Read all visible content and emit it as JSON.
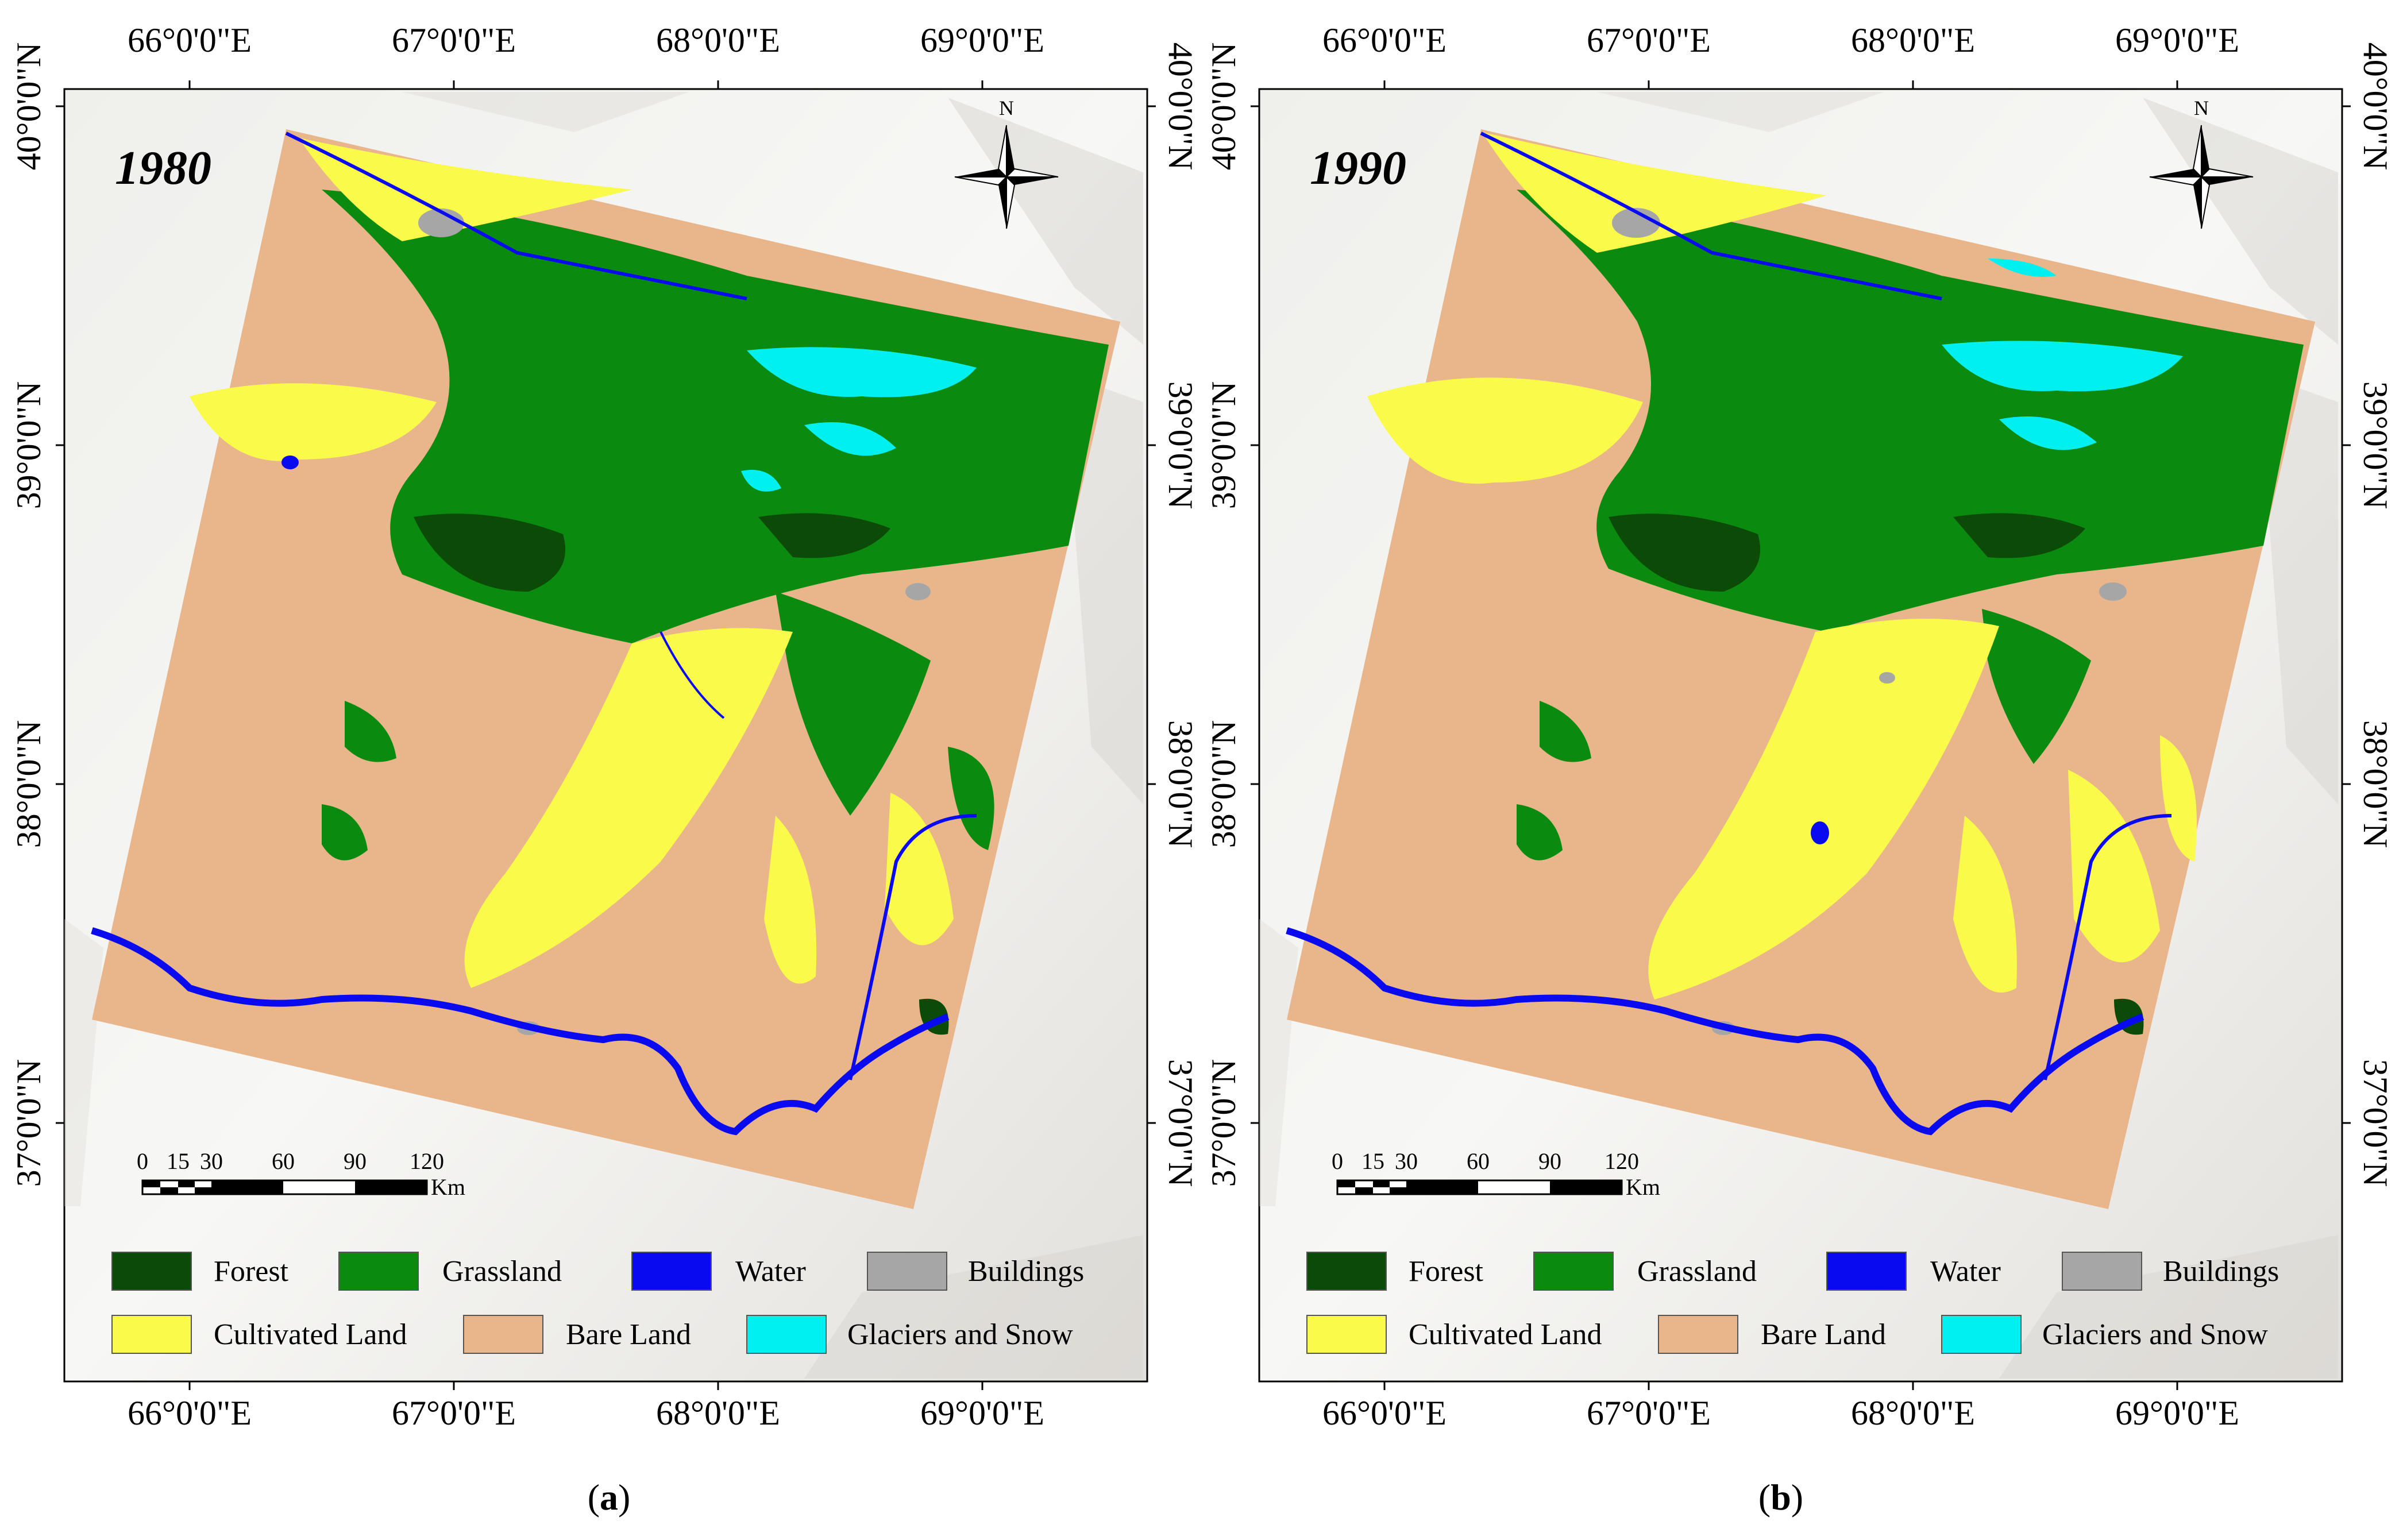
{
  "panels": [
    {
      "year": "1980",
      "caption_letter": "a",
      "north_label": "N",
      "lon_labels": [
        "66°0'0\"E",
        "67°0'0\"E",
        "68°0'0\"E",
        "69°0'0\"E"
      ],
      "lat_labels": [
        "40°0'0\"N",
        "39°0'0\"N",
        "38°0'0\"N",
        "37°0'0\"N"
      ],
      "scale_ticks": [
        "0",
        "15",
        "30",
        "60",
        "90",
        "120"
      ],
      "scale_unit": "Km"
    },
    {
      "year": "1990",
      "caption_letter": "b",
      "north_label": "N",
      "lon_labels": [
        "66°0'0\"E",
        "67°0'0\"E",
        "68°0'0\"E",
        "69°0'0\"E"
      ],
      "lat_labels": [
        "40°0'0\"N",
        "39°0'0\"N",
        "38°0'0\"N",
        "37°0'0\"N"
      ],
      "scale_ticks": [
        "0",
        "15",
        "30",
        "60",
        "90",
        "120"
      ],
      "scale_unit": "Km"
    }
  ],
  "legend": [
    {
      "label": "Forest",
      "color": "#0b4a07"
    },
    {
      "label": "Grassland",
      "color": "#0a8a0e"
    },
    {
      "label": "Water",
      "color": "#0a0af0"
    },
    {
      "label": "Buildings",
      "color": "#a6a6a6"
    },
    {
      "label": "Cultivated Land",
      "color": "#fafa4a"
    },
    {
      "label": "Bare Land",
      "color": "#e8b68a"
    },
    {
      "label": "Glaciers and Snow",
      "color": "#00f0f0"
    }
  ]
}
